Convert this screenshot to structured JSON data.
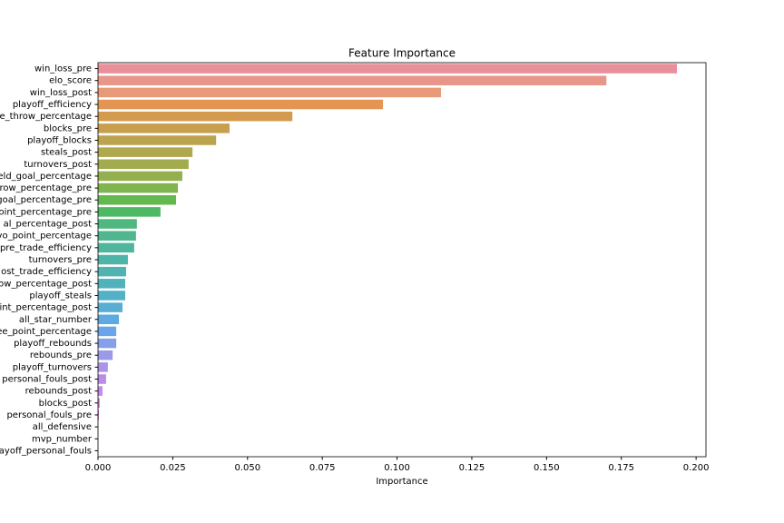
{
  "chart_data": {
    "type": "barh",
    "title": "Feature Importance",
    "x_label": "Importance",
    "categories": [
      "win_loss_pre",
      "elo_score",
      "win_loss_post",
      "playoff_efficiency",
      "e_throw_percentage",
      "blocks_pre",
      "playoff_blocks",
      "steals_post",
      "turnovers_post",
      "eld_goal_percentage",
      "row_percentage_pre",
      "goal_percentage_pre",
      "oint_percentage_pre",
      "al_percentage_post",
      "vo_point_percentage",
      "pre_trade_efficiency",
      "turnovers_pre",
      "ost_trade_efficiency",
      "ow_percentage_post",
      "playoff_steals",
      "int_percentage_post",
      "all_star_number",
      "ee_point_percentage",
      "playoff_rebounds",
      "rebounds_pre",
      "playoff_turnovers",
      "personal_fouls_post",
      "rebounds_post",
      "blocks_post",
      "personal_fouls_pre",
      "all_defensive",
      "mvp_number",
      "ayoff_personal_fouls"
    ],
    "values": [
      0.1936,
      0.17,
      0.1147,
      0.0953,
      0.065,
      0.044,
      0.0395,
      0.0316,
      0.0303,
      0.0282,
      0.0267,
      0.0261,
      0.0209,
      0.013,
      0.0127,
      0.0121,
      0.01,
      0.0094,
      0.0091,
      0.0091,
      0.0082,
      0.007,
      0.0061,
      0.0061,
      0.0049,
      0.0033,
      0.0027,
      0.0015,
      0.0006,
      0.0003,
      0,
      0,
      0
    ],
    "colors": [
      "#e8919b",
      "#e8968a",
      "#e89a78",
      "#e39553",
      "#d49b4f",
      "#c79f4e",
      "#bca44e",
      "#afa84e",
      "#a2ab4e",
      "#93af4e",
      "#80b44e",
      "#63b84f",
      "#4fb864",
      "#4fb780",
      "#4fb690",
      "#4fb59d",
      "#4fb4a8",
      "#50b3b2",
      "#52b2bc",
      "#54b0c6",
      "#57aed2",
      "#5caadf",
      "#6aa5e8",
      "#84a0e8",
      "#999ae8",
      "#aa94e8",
      "#ba8de8",
      "#c988e6",
      "#d785dd",
      "#e285d0",
      "#e688c2",
      "#e78bb4",
      "#e88ea7"
    ],
    "xlim": [
      0,
      0.2033
    ],
    "xticks": [
      {
        "value": 0,
        "label": "0.000"
      },
      {
        "value": 0.025,
        "label": "0.025"
      },
      {
        "value": 0.05,
        "label": "0.050"
      },
      {
        "value": 0.075,
        "label": "0.075"
      },
      {
        "value": 0.1,
        "label": "0.100"
      },
      {
        "value": 0.125,
        "label": "0.125"
      },
      {
        "value": 0.15,
        "label": "0.150"
      },
      {
        "value": 0.175,
        "label": "0.175"
      },
      {
        "value": 0.2,
        "label": "0.200"
      }
    ]
  }
}
